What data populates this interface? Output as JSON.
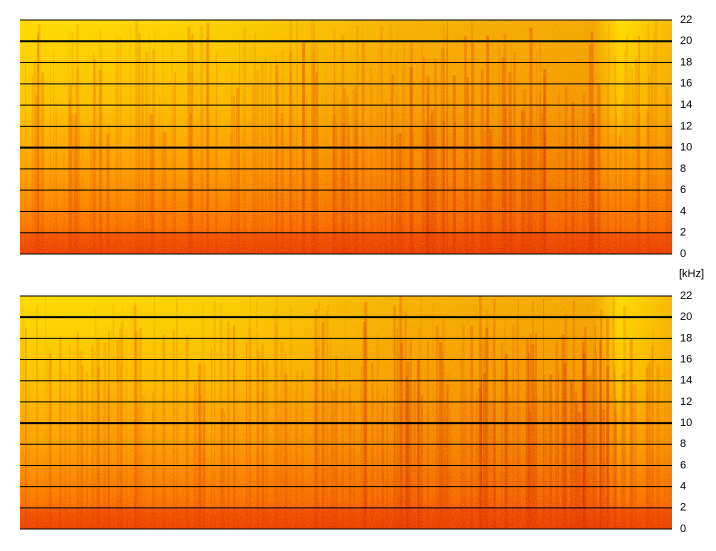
{
  "chart_data": [
    {
      "type": "spectrogram",
      "ylim": [
        0,
        22
      ],
      "yticks": [
        0,
        2,
        4,
        6,
        8,
        10,
        12,
        14,
        16,
        18,
        20,
        22
      ],
      "y_label": "[kHz]",
      "grid": true,
      "major_grid": [
        10,
        20
      ]
    },
    {
      "type": "spectrogram",
      "ylim": [
        0,
        22
      ],
      "yticks": [
        0,
        2,
        4,
        6,
        8,
        10,
        12,
        14,
        16,
        18,
        20,
        22
      ],
      "grid": true,
      "major_grid": [
        10,
        20
      ]
    }
  ]
}
